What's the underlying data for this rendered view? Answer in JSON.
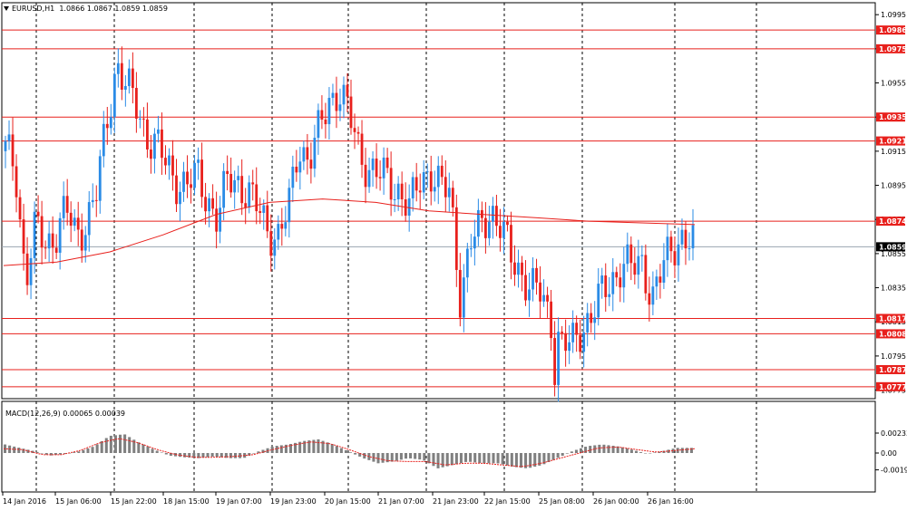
{
  "header": {
    "symbol": "EURUSD,H1",
    "ohlc": "1.0866 1.0867 1.0859 1.0859"
  },
  "macd": {
    "label": "MACD(12,26,9) 0.00065 0.00039",
    "axis_labels": [
      "0.00233",
      "0.00",
      "-0.00197"
    ]
  },
  "colors": {
    "bull": "#2a8be6",
    "bear": "#e8201c",
    "level_line": "#e8201c",
    "ma_line": "#e8201c",
    "macd_hist": "#808080",
    "signal": "#e8201c",
    "grid": "#000000"
  },
  "chart_data": {
    "type": "candlestick",
    "symbol": "EURUSD",
    "timeframe": "H1",
    "price_axis": {
      "min": 1.0777,
      "max": 1.0995,
      "ticks": [
        "1.0995",
        "1.0975",
        "1.0955",
        "1.0935",
        "1.0915",
        "1.0895",
        "1.0875",
        "1.0855",
        "1.0835",
        "1.0815",
        "1.0795",
        "1.0775"
      ]
    },
    "horizontal_levels": [
      {
        "value": "1.0986"
      },
      {
        "value": "1.0975"
      },
      {
        "value": "1.0935"
      },
      {
        "value": "1.0921"
      },
      {
        "value": "1.0874"
      },
      {
        "value": "1.0817"
      },
      {
        "value": "1.0808"
      },
      {
        "value": "1.0787"
      },
      {
        "value": "1.0777"
      }
    ],
    "current_price": "1.0859",
    "time_labels": [
      "14 Jan 2016",
      "15 Jan 06:00",
      "15 Jan 22:00",
      "18 Jan 15:00",
      "19 Jan 07:00",
      "19 Jan 23:00",
      "20 Jan 15:00",
      "21 Jan 07:00",
      "21 Jan 23:00",
      "22 Jan 15:00",
      "25 Jan 08:00",
      "26 Jan 00:00",
      "26 Jan 16:00"
    ],
    "price_path": [
      1.0915,
      1.0905,
      1.084,
      1.087,
      1.086,
      1.0868,
      1.088,
      1.0865,
      1.0875,
      1.089,
      1.093,
      1.0968,
      1.0952,
      1.094,
      1.0925,
      1.0918,
      1.0905,
      1.0898,
      1.0895,
      1.09,
      1.0888,
      1.0875,
      1.0898,
      1.0898,
      1.089,
      1.088,
      1.087,
      1.0865,
      1.088,
      1.092,
      1.091,
      1.0925,
      1.0945,
      1.0952,
      1.0935,
      1.0915,
      1.0905,
      1.09,
      1.0898,
      1.0892,
      1.088,
      1.0898,
      1.0905,
      1.0893,
      1.089,
      1.083,
      1.086,
      1.087,
      1.0882,
      1.087,
      1.0852,
      1.0845,
      1.0835,
      1.083,
      1.0815,
      1.0802,
      1.08,
      1.0812,
      1.082,
      1.083,
      1.084,
      1.085,
      1.0845,
      1.085,
      1.083,
      1.0845,
      1.086,
      1.0866,
      1.0859
    ],
    "moving_average": [
      1.0848,
      1.085,
      1.0856,
      1.0866,
      1.0878,
      1.0885,
      1.0887,
      1.0885,
      1.088,
      1.0878,
      1.0876,
      1.0874,
      1.0873,
      1.0872
    ],
    "macd_histogram": [
      0.001,
      0.0006,
      0.0002,
      -0.0003,
      -0.0001,
      0.0002,
      0.0008,
      0.002,
      0.0022,
      0.0012,
      0.0004,
      -0.0003,
      -0.0005,
      -0.0006,
      -0.0004,
      -0.0006,
      -0.0006,
      0.0002,
      0.0008,
      0.001,
      0.0014,
      0.0016,
      0.001,
      0.0002,
      -0.0006,
      -0.0012,
      -0.001,
      -0.0006,
      -0.0008,
      -0.0018,
      -0.0014,
      -0.001,
      -0.0012,
      -0.0012,
      -0.0016,
      -0.0018,
      -0.0014,
      -0.0006,
      0.0002,
      0.0008,
      0.001,
      0.0008,
      0.0004,
      -0.0001,
      0.0002,
      0.0006,
      0.0006
    ],
    "macd_signal": [
      0.0005,
      0.0004,
      -0.0002,
      -0.0002,
      0.0003,
      0.0012,
      0.0017,
      0.0012,
      0.0004,
      -0.0002,
      -0.0005,
      -0.0005,
      -0.0004,
      -0.0002,
      0.0004,
      0.0009,
      0.0013,
      0.0011,
      0.0004,
      -0.0004,
      -0.0009,
      -0.001,
      -0.001,
      -0.0014,
      -0.0012,
      -0.0012,
      -0.0014,
      -0.0016,
      -0.0012,
      -0.0006,
      0.0,
      0.0006,
      0.0007,
      0.0004,
      0.0001,
      0.0003,
      0.0005
    ],
    "grid": true
  }
}
